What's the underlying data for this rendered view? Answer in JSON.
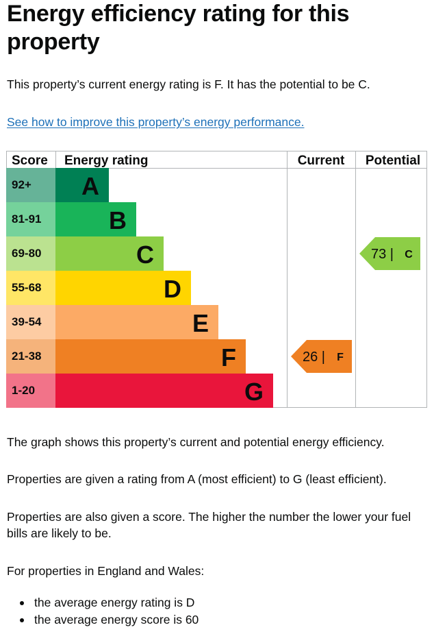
{
  "heading": "Energy efficiency rating for this property",
  "intro": "This property’s current energy rating is F. It has the potential to be C.",
  "improve_link": "See how to improve this property’s energy performance.",
  "chart_data": {
    "type": "bar",
    "headers": {
      "score": "Score",
      "rating": "Energy rating",
      "current": "Current",
      "potential": "Potential"
    },
    "bands": [
      {
        "score": "92+",
        "letter": "A",
        "color": "#008054",
        "score_color": "#66b398"
      },
      {
        "score": "81-91",
        "letter": "B",
        "color": "#19b459",
        "score_color": "#75d29b"
      },
      {
        "score": "69-80",
        "letter": "C",
        "color": "#8dce46",
        "score_color": "#bbe290"
      },
      {
        "score": "55-68",
        "letter": "D",
        "color": "#ffd500",
        "score_color": "#ffe666"
      },
      {
        "score": "39-54",
        "letter": "E",
        "color": "#fcaa65",
        "score_color": "#fdcca3"
      },
      {
        "score": "21-38",
        "letter": "F",
        "color": "#ef8023",
        "score_color": "#f5b37b"
      },
      {
        "score": "1-20",
        "letter": "G",
        "color": "#e9153b",
        "score_color": "#f27389"
      }
    ],
    "current": {
      "value": 26,
      "letter": "F",
      "label": "26 |",
      "color": "#ef8023"
    },
    "potential": {
      "value": 73,
      "letter": "C",
      "label": "73 |",
      "color": "#8dce46"
    }
  },
  "body": {
    "graph_text": "The graph shows this property’s current and potential energy efficiency.",
    "ratings_text": "Properties are given a rating from A (most efficient) to G (least efficient).",
    "score_text": "Properties are also given a score. The higher the number the lower your fuel bills are likely to be.",
    "region_text": "For properties in England and Wales:",
    "bullets": [
      "the average energy rating is D",
      "the average energy score is 60"
    ]
  }
}
